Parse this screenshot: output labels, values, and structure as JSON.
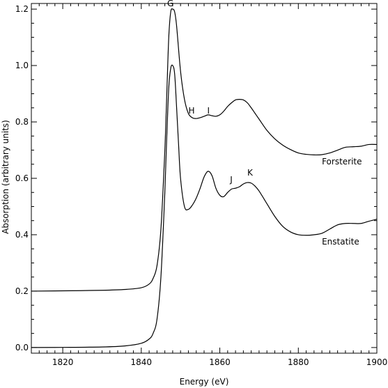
{
  "chart_data": {
    "type": "line",
    "xlabel": "Energy (eV)",
    "ylabel": "Absorption (arbitrary units)",
    "xlim": [
      1812,
      1900
    ],
    "ylim": [
      -0.02,
      1.22
    ],
    "xticks": [
      1820,
      1840,
      1860,
      1880,
      1900
    ],
    "yticks": [
      0.0,
      0.2,
      0.4,
      0.6,
      0.8,
      1.0,
      1.2
    ],
    "ytick_labels": [
      "0.0",
      "0.2",
      "0.4",
      "0.6",
      "0.8",
      "1.0",
      "1.2"
    ],
    "grid": false,
    "series": [
      {
        "name": "Forsterite",
        "x": [
          1812,
          1820,
          1830,
          1836,
          1840,
          1842,
          1843,
          1844,
          1845,
          1846,
          1846.5,
          1847,
          1847.5,
          1848,
          1848.5,
          1849,
          1850,
          1851,
          1852,
          1853,
          1854,
          1855,
          1856,
          1857,
          1858,
          1859,
          1860,
          1861,
          1862,
          1863,
          1864,
          1865,
          1866,
          1867,
          1868,
          1869,
          1870,
          1872,
          1874,
          1876,
          1878,
          1880,
          1882,
          1884,
          1886,
          1888,
          1890,
          1892,
          1894,
          1896,
          1898,
          1900
        ],
        "y": [
          0.2,
          0.201,
          0.203,
          0.206,
          0.212,
          0.225,
          0.245,
          0.29,
          0.42,
          0.7,
          0.9,
          1.1,
          1.19,
          1.2,
          1.19,
          1.14,
          0.98,
          0.88,
          0.83,
          0.815,
          0.812,
          0.815,
          0.82,
          0.825,
          0.822,
          0.82,
          0.825,
          0.838,
          0.855,
          0.868,
          0.878,
          0.88,
          0.878,
          0.868,
          0.85,
          0.83,
          0.81,
          0.77,
          0.74,
          0.718,
          0.702,
          0.69,
          0.685,
          0.683,
          0.684,
          0.69,
          0.7,
          0.71,
          0.712,
          0.714,
          0.72,
          0.72
        ]
      },
      {
        "name": "Enstatite",
        "x": [
          1812,
          1820,
          1830,
          1836,
          1840,
          1842,
          1843,
          1844,
          1845,
          1846,
          1846.5,
          1847,
          1847.5,
          1848,
          1848.5,
          1849,
          1849.5,
          1850,
          1851,
          1852,
          1853,
          1854,
          1855,
          1856,
          1857,
          1858,
          1859,
          1860,
          1861,
          1862,
          1863,
          1864,
          1865,
          1866,
          1867,
          1868,
          1869,
          1870,
          1872,
          1874,
          1876,
          1878,
          1880,
          1882,
          1884,
          1886,
          1888,
          1890,
          1892,
          1894,
          1896,
          1898,
          1900
        ],
        "y": [
          0.0,
          0.0005,
          0.002,
          0.006,
          0.015,
          0.03,
          0.05,
          0.1,
          0.25,
          0.55,
          0.75,
          0.92,
          0.99,
          1.0,
          0.97,
          0.85,
          0.72,
          0.6,
          0.5,
          0.49,
          0.505,
          0.53,
          0.565,
          0.605,
          0.625,
          0.61,
          0.565,
          0.54,
          0.535,
          0.55,
          0.562,
          0.565,
          0.57,
          0.58,
          0.585,
          0.583,
          0.572,
          0.555,
          0.51,
          0.465,
          0.43,
          0.41,
          0.4,
          0.398,
          0.4,
          0.405,
          0.42,
          0.435,
          0.44,
          0.44,
          0.44,
          0.448,
          0.455
        ]
      }
    ],
    "annotations": [
      {
        "text": "G",
        "x": 1846.6,
        "y": 1.21
      },
      {
        "text": "H",
        "x": 1852.0,
        "y": 0.83
      },
      {
        "text": "I",
        "x": 1856.8,
        "y": 0.83
      },
      {
        "text": "J",
        "x": 1862.6,
        "y": 0.585
      },
      {
        "text": "K",
        "x": 1867.0,
        "y": 0.61
      },
      {
        "text": "Forsterite",
        "x": 1886.0,
        "y": 0.65
      },
      {
        "text": "Enstatite",
        "x": 1886.0,
        "y": 0.365
      }
    ]
  }
}
